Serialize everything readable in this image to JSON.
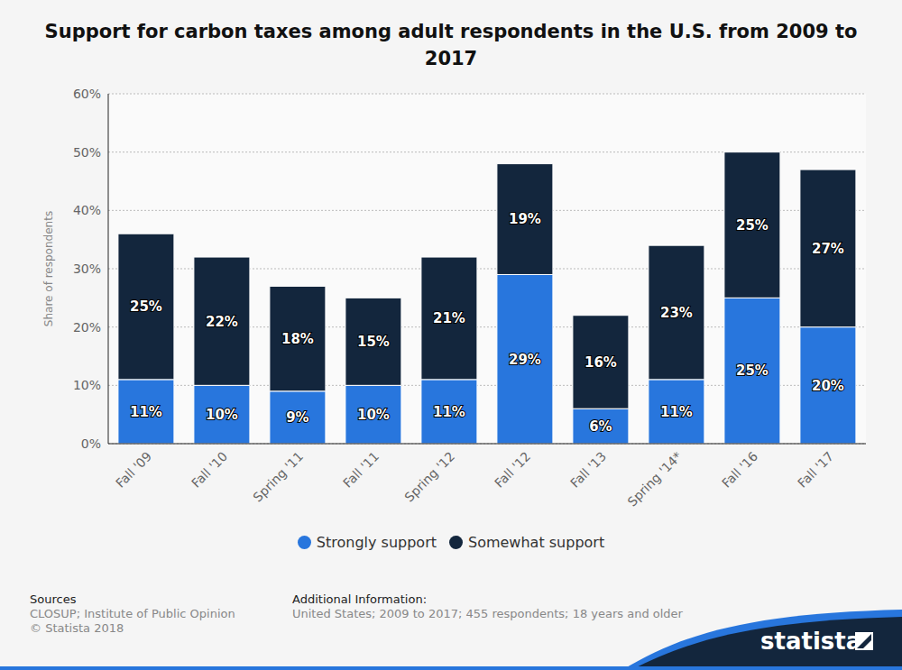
{
  "chart_data": {
    "type": "bar",
    "title": "Support for carbon taxes among adult respondents in the U.S. from 2009 to 2017",
    "y_label": "Share of respondents",
    "categories": [
      "Fall '09",
      "Fall '10",
      "Spring '11",
      "Fall '11",
      "Spring '12",
      "Fall '12",
      "Fall '13",
      "Spring '14*",
      "Fall '16",
      "Fall '17"
    ],
    "series": [
      {
        "name": "Strongly support",
        "color": "#2876dd",
        "values": [
          11,
          10,
          9,
          10,
          11,
          29,
          6,
          11,
          25,
          20
        ],
        "value_labels": [
          "11%",
          "10%",
          "9%",
          "10%",
          "11%",
          "29%",
          "6%",
          "11%",
          "25%",
          "20%"
        ]
      },
      {
        "name": "Somewhat support",
        "color": "#13263d",
        "values": [
          25,
          22,
          18,
          15,
          21,
          19,
          16,
          23,
          25,
          27
        ],
        "value_labels": [
          "25%",
          "22%",
          "18%",
          "15%",
          "21%",
          "19%",
          "16%",
          "23%",
          "25%",
          "27%"
        ]
      }
    ],
    "stacked": true,
    "data_labels": true,
    "grid": true,
    "legend": "bottom",
    "ylim": [
      0,
      60
    ],
    "yticks": [
      {
        "value": 0,
        "label": "0%"
      },
      {
        "value": 10,
        "label": "10%"
      },
      {
        "value": 20,
        "label": "20%"
      },
      {
        "value": 30,
        "label": "30%"
      },
      {
        "value": 40,
        "label": "40%"
      },
      {
        "value": 50,
        "label": "50%"
      },
      {
        "value": 60,
        "label": "60%"
      }
    ],
    "footer": {
      "sources_heading": "Sources",
      "sources": [
        "CLOSUP; Institute of Public Opinion",
        "© Statista 2018"
      ],
      "info_heading": "Additional Information:",
      "info": "United States; 2009 to 2017; 455 respondents; 18 years and older",
      "logo": "statista"
    }
  }
}
